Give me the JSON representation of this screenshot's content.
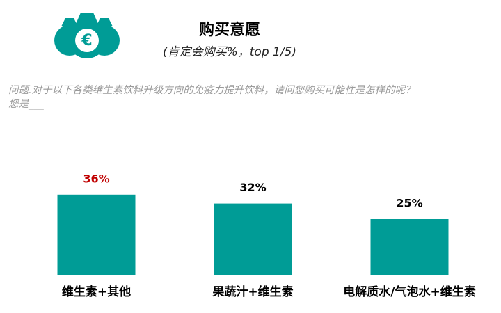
{
  "chart_data": {
    "type": "bar",
    "title": "购买意愿",
    "subtitle": "(肯定会购买%，top 1/5)",
    "question": [
      "问题.对于以下各类维生素饮料升级方向的免疫力提升饮料，请问您购买可能性是怎样的呢？",
      "您是___"
    ],
    "categories": [
      "维生素+其他",
      "果蔬汁+维生素",
      "电解质水/气泡水+维生素"
    ],
    "values": [
      36,
      32,
      25
    ],
    "value_labels": [
      "36%",
      "32%",
      "25%"
    ],
    "value_label_colors": [
      "#c00000",
      "#000000",
      "#000000"
    ],
    "color": "#009c96"
  }
}
